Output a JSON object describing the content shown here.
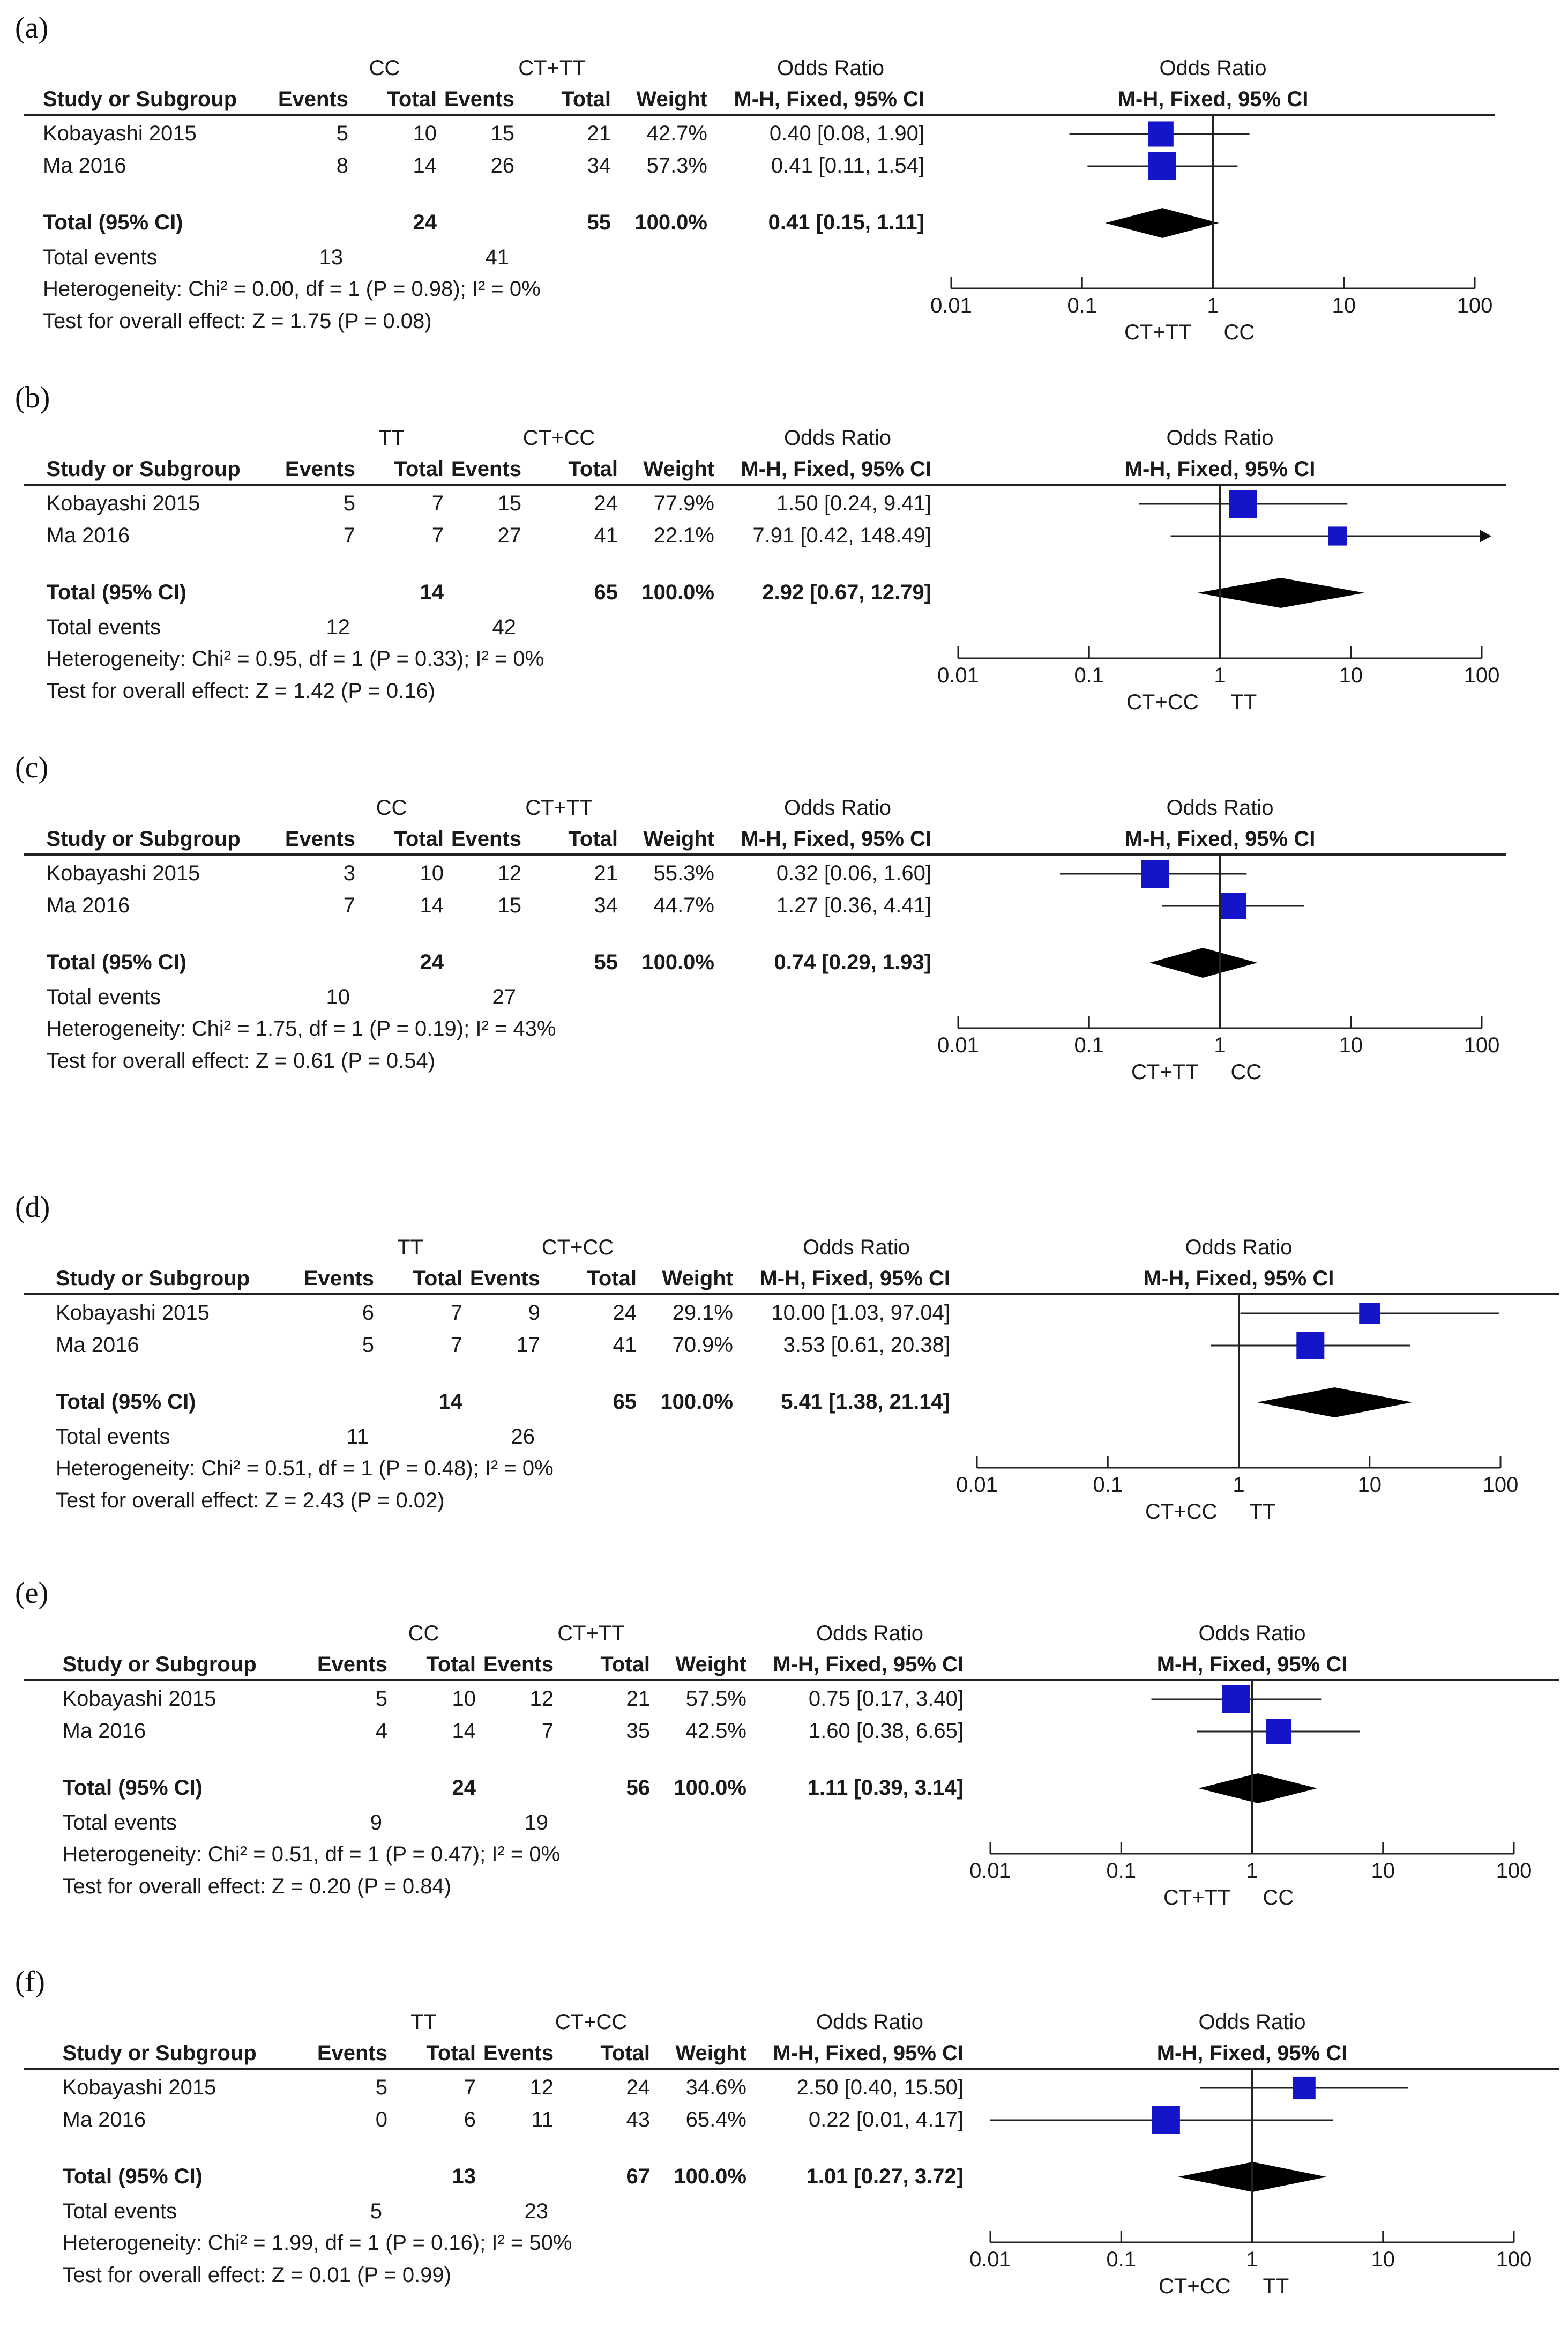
{
  "chart_data": [
    {
      "type": "forest",
      "label": "(a)",
      "group1": "CC",
      "group2": "CT+TT",
      "headers": {
        "study": "Study or Subgroup",
        "events": "Events",
        "total": "Total",
        "weight": "Weight",
        "or_title": "Odds Ratio",
        "or_method": "M-H, Fixed, 95% CI"
      },
      "studies": [
        {
          "name": "Kobayashi 2015",
          "e1": "5",
          "t1": "10",
          "e2": "15",
          "t2": "21",
          "weight": "42.7%",
          "ci_text": "0.40 [0.08, 1.90]",
          "or": 0.4,
          "lo": 0.08,
          "hi": 1.9,
          "w": 42.7
        },
        {
          "name": "Ma 2016",
          "e1": "8",
          "t1": "14",
          "e2": "26",
          "t2": "34",
          "weight": "57.3%",
          "ci_text": "0.41 [0.11, 1.54]",
          "or": 0.41,
          "lo": 0.11,
          "hi": 1.54,
          "w": 57.3
        }
      ],
      "total": {
        "label": "Total (95% CI)",
        "t1": "24",
        "t2": "55",
        "weight": "100.0%",
        "ci_text": "0.41 [0.15, 1.11]",
        "or": 0.41,
        "lo": 0.15,
        "hi": 1.11
      },
      "total_events": {
        "label": "Total events",
        "e1": "13",
        "e2": "41"
      },
      "heterogeneity": "Heterogeneity: Chi² = 0.00, df = 1 (P = 0.98); I² = 0%",
      "overall": "Test for overall effect: Z = 1.75 (P = 0.08)",
      "axis_ticks": [
        "0.01",
        "0.1",
        "1",
        "10",
        "100"
      ],
      "tick_values": [
        0.01,
        0.1,
        1,
        10,
        100
      ],
      "favours_left": "CT+TT",
      "favours_right": "CC"
    },
    {
      "type": "forest",
      "label": "(b)",
      "group1": "TT",
      "group2": "CT+CC",
      "headers": {
        "study": "Study or Subgroup",
        "events": "Events",
        "total": "Total",
        "weight": "Weight",
        "or_title": "Odds Ratio",
        "or_method": "M-H, Fixed, 95% CI"
      },
      "studies": [
        {
          "name": "Kobayashi 2015",
          "e1": "5",
          "t1": "7",
          "e2": "15",
          "t2": "24",
          "weight": "77.9%",
          "ci_text": "1.50 [0.24, 9.41]",
          "or": 1.5,
          "lo": 0.24,
          "hi": 9.41,
          "w": 77.9
        },
        {
          "name": "Ma 2016",
          "e1": "7",
          "t1": "7",
          "e2": "27",
          "t2": "41",
          "weight": "22.1%",
          "ci_text": "7.91 [0.42, 148.49]",
          "or": 7.91,
          "lo": 0.42,
          "hi": 148.49,
          "w": 22.1
        }
      ],
      "total": {
        "label": "Total (95% CI)",
        "t1": "14",
        "t2": "65",
        "weight": "100.0%",
        "ci_text": "2.92 [0.67, 12.79]",
        "or": 2.92,
        "lo": 0.67,
        "hi": 12.79
      },
      "total_events": {
        "label": "Total events",
        "e1": "12",
        "e2": "42"
      },
      "heterogeneity": "Heterogeneity: Chi² = 0.95, df = 1 (P = 0.33); I² = 0%",
      "overall": "Test for overall effect: Z = 1.42 (P = 0.16)",
      "axis_ticks": [
        "0.01",
        "0.1",
        "1",
        "10",
        "100"
      ],
      "tick_values": [
        0.01,
        0.1,
        1,
        10,
        100
      ],
      "favours_left": "CT+CC",
      "favours_right": "TT"
    },
    {
      "type": "forest",
      "label": "(c)",
      "group1": "CC",
      "group2": "CT+TT",
      "headers": {
        "study": "Study or Subgroup",
        "events": "Events",
        "total": "Total",
        "weight": "Weight",
        "or_title": "Odds Ratio",
        "or_method": "M-H, Fixed, 95% CI"
      },
      "studies": [
        {
          "name": "Kobayashi 2015",
          "e1": "3",
          "t1": "10",
          "e2": "12",
          "t2": "21",
          "weight": "55.3%",
          "ci_text": "0.32 [0.06, 1.60]",
          "or": 0.32,
          "lo": 0.06,
          "hi": 1.6,
          "w": 55.3
        },
        {
          "name": "Ma 2016",
          "e1": "7",
          "t1": "14",
          "e2": "15",
          "t2": "34",
          "weight": "44.7%",
          "ci_text": "1.27 [0.36, 4.41]",
          "or": 1.27,
          "lo": 0.36,
          "hi": 4.41,
          "w": 44.7
        }
      ],
      "total": {
        "label": "Total (95% CI)",
        "t1": "24",
        "t2": "55",
        "weight": "100.0%",
        "ci_text": "0.74 [0.29, 1.93]",
        "or": 0.74,
        "lo": 0.29,
        "hi": 1.93
      },
      "total_events": {
        "label": "Total events",
        "e1": "10",
        "e2": "27"
      },
      "heterogeneity": "Heterogeneity: Chi² = 1.75, df = 1 (P = 0.19); I² = 43%",
      "overall": "Test for overall effect: Z = 0.61 (P = 0.54)",
      "axis_ticks": [
        "0.01",
        "0.1",
        "1",
        "10",
        "100"
      ],
      "tick_values": [
        0.01,
        0.1,
        1,
        10,
        100
      ],
      "favours_left": "CT+TT",
      "favours_right": "CC"
    },
    {
      "type": "forest",
      "label": "(d)",
      "group1": "TT",
      "group2": "CT+CC",
      "headers": {
        "study": "Study or Subgroup",
        "events": "Events",
        "total": "Total",
        "weight": "Weight",
        "or_title": "Odds Ratio",
        "or_method": "M-H, Fixed, 95% CI"
      },
      "studies": [
        {
          "name": "Kobayashi 2015",
          "e1": "6",
          "t1": "7",
          "e2": "9",
          "t2": "24",
          "weight": "29.1%",
          "ci_text": "10.00 [1.03, 97.04]",
          "or": 10.0,
          "lo": 1.03,
          "hi": 97.04,
          "w": 29.1
        },
        {
          "name": "Ma 2016",
          "e1": "5",
          "t1": "7",
          "e2": "17",
          "t2": "41",
          "weight": "70.9%",
          "ci_text": "3.53 [0.61, 20.38]",
          "or": 3.53,
          "lo": 0.61,
          "hi": 20.38,
          "w": 70.9
        }
      ],
      "total": {
        "label": "Total (95% CI)",
        "t1": "14",
        "t2": "65",
        "weight": "100.0%",
        "ci_text": "5.41 [1.38, 21.14]",
        "or": 5.41,
        "lo": 1.38,
        "hi": 21.14
      },
      "total_events": {
        "label": "Total events",
        "e1": "11",
        "e2": "26"
      },
      "heterogeneity": "Heterogeneity: Chi² = 0.51, df = 1 (P = 0.48); I² = 0%",
      "overall": "Test for overall effect: Z = 2.43 (P = 0.02)",
      "axis_ticks": [
        "0.01",
        "0.1",
        "1",
        "10",
        "100"
      ],
      "tick_values": [
        0.01,
        0.1,
        1,
        10,
        100
      ],
      "favours_left": "CT+CC",
      "favours_right": "TT"
    },
    {
      "type": "forest",
      "label": "(e)",
      "group1": "CC",
      "group2": "CT+TT",
      "headers": {
        "study": "Study or Subgroup",
        "events": "Events",
        "total": "Total",
        "weight": "Weight",
        "or_title": "Odds Ratio",
        "or_method": "M-H, Fixed, 95% CI"
      },
      "studies": [
        {
          "name": "Kobayashi 2015",
          "e1": "5",
          "t1": "10",
          "e2": "12",
          "t2": "21",
          "weight": "57.5%",
          "ci_text": "0.75 [0.17, 3.40]",
          "or": 0.75,
          "lo": 0.17,
          "hi": 3.4,
          "w": 57.5
        },
        {
          "name": "Ma 2016",
          "e1": "4",
          "t1": "14",
          "e2": "7",
          "t2": "35",
          "weight": "42.5%",
          "ci_text": "1.60 [0.38, 6.65]",
          "or": 1.6,
          "lo": 0.38,
          "hi": 6.65,
          "w": 42.5
        }
      ],
      "total": {
        "label": "Total (95% CI)",
        "t1": "24",
        "t2": "56",
        "weight": "100.0%",
        "ci_text": "1.11 [0.39, 3.14]",
        "or": 1.11,
        "lo": 0.39,
        "hi": 3.14
      },
      "total_events": {
        "label": "Total events",
        "e1": "9",
        "e2": "19"
      },
      "heterogeneity": "Heterogeneity: Chi² = 0.51, df = 1 (P = 0.47); I² = 0%",
      "overall": "Test for overall effect: Z = 0.20 (P = 0.84)",
      "axis_ticks": [
        "0.01",
        "0.1",
        "1",
        "10",
        "100"
      ],
      "tick_values": [
        0.01,
        0.1,
        1,
        10,
        100
      ],
      "favours_left": "CT+TT",
      "favours_right": "CC"
    },
    {
      "type": "forest",
      "label": "(f)",
      "group1": "TT",
      "group2": "CT+CC",
      "headers": {
        "study": "Study or Subgroup",
        "events": "Events",
        "total": "Total",
        "weight": "Weight",
        "or_title": "Odds Ratio",
        "or_method": "M-H, Fixed, 95% CI"
      },
      "studies": [
        {
          "name": "Kobayashi 2015",
          "e1": "5",
          "t1": "7",
          "e2": "12",
          "t2": "24",
          "weight": "34.6%",
          "ci_text": "2.50 [0.40, 15.50]",
          "or": 2.5,
          "lo": 0.4,
          "hi": 15.5,
          "w": 34.6
        },
        {
          "name": "Ma 2016",
          "e1": "0",
          "t1": "6",
          "e2": "11",
          "t2": "43",
          "weight": "65.4%",
          "ci_text": "0.22 [0.01, 4.17]",
          "or": 0.22,
          "lo": 0.01,
          "hi": 4.17,
          "w": 65.4
        }
      ],
      "total": {
        "label": "Total (95% CI)",
        "t1": "13",
        "t2": "67",
        "weight": "100.0%",
        "ci_text": "1.01 [0.27, 3.72]",
        "or": 1.01,
        "lo": 0.27,
        "hi": 3.72
      },
      "total_events": {
        "label": "Total events",
        "e1": "5",
        "e2": "23"
      },
      "heterogeneity": "Heterogeneity: Chi² = 1.99, df = 1 (P = 0.16); I² = 50%",
      "overall": "Test for overall effect: Z = 0.01 (P = 0.99)",
      "axis_ticks": [
        "0.01",
        "0.1",
        "1",
        "10",
        "100"
      ],
      "tick_values": [
        0.01,
        0.1,
        1,
        10,
        100
      ],
      "favours_left": "CT+CC",
      "favours_right": "TT"
    }
  ]
}
